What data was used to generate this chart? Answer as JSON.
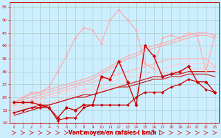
{
  "background_color": "#cceeff",
  "grid_color": "#aacccc",
  "xlabel": "Vent moyen/en rafales ( km/h )",
  "xlabel_color": "#cc0000",
  "tick_color": "#cc0000",
  "xlim": [
    -0.5,
    23.5
  ],
  "ylim": [
    10,
    57
  ],
  "yticks": [
    10,
    15,
    20,
    25,
    30,
    35,
    40,
    45,
    50,
    55
  ],
  "xticks": [
    0,
    1,
    2,
    3,
    4,
    5,
    6,
    7,
    8,
    9,
    10,
    11,
    12,
    13,
    14,
    15,
    16,
    17,
    18,
    19,
    20,
    21,
    22,
    23
  ],
  "lines": [
    {
      "x": [
        0,
        1,
        2,
        3,
        4,
        5,
        6,
        7,
        8,
        9,
        10,
        11,
        12,
        13,
        14,
        15,
        16,
        17,
        18,
        19,
        20,
        21,
        22,
        23
      ],
      "y": [
        18,
        20,
        22,
        22,
        24,
        30,
        36,
        43,
        47,
        46,
        41,
        50,
        54,
        50,
        46,
        33,
        31,
        43,
        44,
        43,
        45,
        44,
        30,
        44
      ],
      "color": "#ffaaaa",
      "linewidth": 0.9,
      "marker": "o",
      "markersize": 2.0,
      "zorder": 3
    },
    {
      "x": [
        0,
        1,
        2,
        3,
        4,
        5,
        6,
        7,
        8,
        9,
        10,
        11,
        12,
        13,
        14,
        15,
        16,
        17,
        18,
        19,
        20,
        21,
        22,
        23
      ],
      "y": [
        18,
        20,
        21,
        22,
        23,
        24,
        25,
        26,
        27,
        28,
        30,
        32,
        34,
        36,
        37,
        39,
        40,
        41,
        42,
        43,
        44,
        45,
        45,
        44
      ],
      "color": "#ffaaaa",
      "linewidth": 0.9,
      "marker": null,
      "markersize": 0,
      "zorder": 2
    },
    {
      "x": [
        0,
        1,
        2,
        3,
        4,
        5,
        6,
        7,
        8,
        9,
        10,
        11,
        12,
        13,
        14,
        15,
        16,
        17,
        18,
        19,
        20,
        21,
        22,
        23
      ],
      "y": [
        18,
        19,
        20,
        21,
        22,
        23,
        24,
        25,
        26,
        27,
        29,
        31,
        33,
        35,
        36,
        38,
        39,
        40,
        41,
        42,
        43,
        44,
        44,
        43
      ],
      "color": "#ffaaaa",
      "linewidth": 0.9,
      "marker": null,
      "markersize": 0,
      "zorder": 2
    },
    {
      "x": [
        0,
        1,
        2,
        3,
        4,
        5,
        6,
        7,
        8,
        9,
        10,
        11,
        12,
        13,
        14,
        15,
        16,
        17,
        18,
        19,
        20,
        21,
        22,
        23
      ],
      "y": [
        17,
        18,
        19,
        20,
        21,
        22,
        23,
        24,
        25,
        26,
        27,
        28,
        29,
        30,
        31,
        32,
        33,
        34,
        35,
        35,
        35,
        35,
        35,
        32
      ],
      "color": "#ffbbbb",
      "linewidth": 0.9,
      "marker": "o",
      "markersize": 2.0,
      "zorder": 3
    },
    {
      "x": [
        0,
        1,
        2,
        3,
        4,
        5,
        6,
        7,
        8,
        9,
        10,
        11,
        12,
        13,
        14,
        15,
        16,
        17,
        18,
        19,
        20,
        21,
        22,
        23
      ],
      "y": [
        16,
        17,
        18,
        19,
        20,
        21,
        22,
        23,
        23,
        24,
        25,
        26,
        27,
        28,
        28,
        29,
        30,
        31,
        32,
        33,
        33,
        33,
        33,
        31
      ],
      "color": "#ffcccc",
      "linewidth": 0.9,
      "marker": null,
      "markersize": 0,
      "zorder": 2
    },
    {
      "x": [
        0,
        1,
        2,
        3,
        4,
        5,
        6,
        7,
        8,
        9,
        10,
        11,
        12,
        13,
        14,
        15,
        16,
        17,
        18,
        19,
        20,
        21,
        22,
        23
      ],
      "y": [
        15,
        16,
        17,
        18,
        18,
        19,
        20,
        21,
        22,
        23,
        23,
        24,
        25,
        26,
        26,
        27,
        28,
        29,
        30,
        30,
        31,
        31,
        31,
        30
      ],
      "color": "#ffcccc",
      "linewidth": 0.9,
      "marker": null,
      "markersize": 0,
      "zorder": 2
    },
    {
      "x": [
        0,
        1,
        2,
        3,
        4,
        5,
        6,
        7,
        8,
        9,
        10,
        11,
        12,
        13,
        14,
        15,
        16,
        17,
        18,
        19,
        20,
        21,
        22,
        23
      ],
      "y": [
        18,
        18,
        18,
        17,
        16,
        12,
        16,
        15,
        17,
        17,
        28,
        27,
        34,
        26,
        17,
        40,
        36,
        28,
        29,
        30,
        32,
        26,
        26,
        22
      ],
      "color": "#cc0000",
      "linewidth": 1.0,
      "marker": "D",
      "markersize": 2.5,
      "zorder": 5
    },
    {
      "x": [
        0,
        1,
        2,
        3,
        4,
        5,
        6,
        7,
        8,
        9,
        10,
        11,
        12,
        13,
        14,
        15,
        16,
        17,
        18,
        19,
        20,
        21,
        22,
        23
      ],
      "y": [
        14,
        15,
        16,
        16,
        16,
        11,
        12,
        12,
        16,
        17,
        17,
        17,
        17,
        17,
        20,
        22,
        22,
        22,
        24,
        25,
        27,
        26,
        23,
        22
      ],
      "color": "#cc0000",
      "linewidth": 0.9,
      "marker": "D",
      "markersize": 2.0,
      "zorder": 4
    },
    {
      "x": [
        0,
        1,
        2,
        3,
        4,
        5,
        6,
        7,
        8,
        9,
        10,
        11,
        12,
        13,
        14,
        15,
        16,
        17,
        18,
        19,
        20,
        21,
        22,
        23
      ],
      "y": [
        13,
        14,
        15,
        16,
        17,
        18,
        19,
        20,
        20,
        21,
        22,
        23,
        24,
        25,
        26,
        27,
        28,
        28,
        29,
        29,
        30,
        30,
        30,
        30
      ],
      "color": "#cc2222",
      "linewidth": 0.9,
      "marker": null,
      "markersize": 0,
      "zorder": 2
    },
    {
      "x": [
        0,
        1,
        2,
        3,
        4,
        5,
        6,
        7,
        8,
        9,
        10,
        11,
        12,
        13,
        14,
        15,
        16,
        17,
        18,
        19,
        20,
        21,
        22,
        23
      ],
      "y": [
        14,
        15,
        16,
        17,
        17,
        18,
        19,
        20,
        21,
        21,
        22,
        23,
        24,
        24,
        25,
        26,
        27,
        27,
        28,
        28,
        29,
        29,
        29,
        28
      ],
      "color": "#cc2222",
      "linewidth": 0.9,
      "marker": null,
      "markersize": 0,
      "zorder": 2
    }
  ],
  "arrow_color": "#cc0000",
  "figwidth": 3.2,
  "figheight": 2.0,
  "dpi": 100
}
